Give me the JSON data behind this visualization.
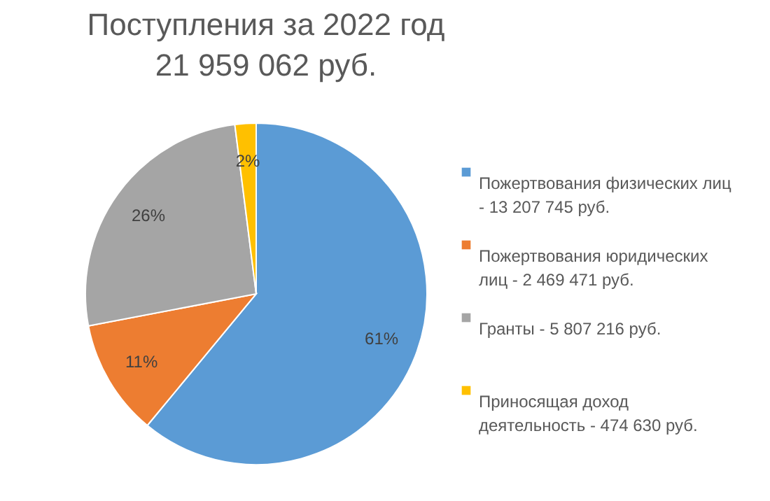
{
  "chart_data": {
    "type": "pie",
    "title": [
      "Поступления за 2022 год",
      "21 959 062 руб."
    ],
    "categories": [
      "Пожертвования физических лиц - 13 207 745 руб.",
      "Пожертвования юридических лиц - 2 469 471 руб.",
      "Гранты - 5 807 216 руб.",
      "Приносящая доход деятельность - 474 630 руб."
    ],
    "values": [
      61,
      11,
      26,
      2
    ],
    "colors": [
      "#5b9bd5",
      "#ed7d31",
      "#a5a5a5",
      "#ffc000"
    ],
    "value_labels": [
      "61%",
      "11%",
      "26%",
      "2%"
    ],
    "legend": "right"
  }
}
